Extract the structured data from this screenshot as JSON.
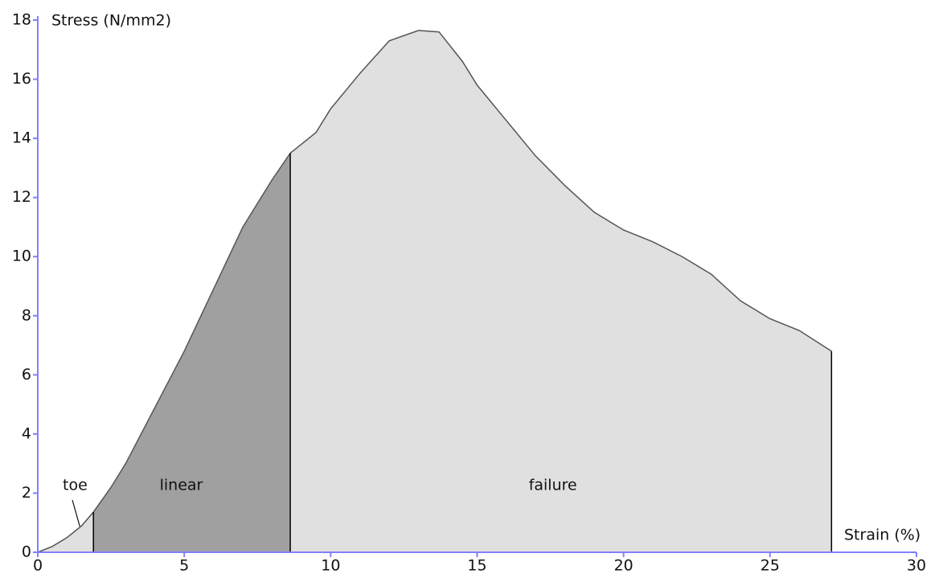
{
  "chart_data": {
    "type": "area",
    "y_label": "Stress (N/mm2)",
    "x_label": "Strain (%)",
    "x": [
      0,
      0.5,
      1,
      1.5,
      1.9,
      2.5,
      3,
      4,
      5,
      6,
      7,
      8,
      8.62,
      9,
      9.5,
      10,
      11,
      12,
      13,
      13.7,
      14.5,
      15,
      16,
      17,
      18,
      19,
      20,
      21,
      22,
      23,
      24,
      25,
      26,
      27.1
    ],
    "values": [
      0,
      0.2,
      0.5,
      0.9,
      1.36,
      2.2,
      3,
      4.9,
      6.8,
      8.9,
      11,
      12.6,
      13.5,
      13.8,
      14.2,
      15,
      16.2,
      17.3,
      17.65,
      17.6,
      16.6,
      15.8,
      14.6,
      13.4,
      12.4,
      11.5,
      10.9,
      10.5,
      10.0,
      9.4,
      8.5,
      7.9,
      7.5,
      6.8
    ],
    "regions": [
      {
        "name": "toe",
        "start": 0,
        "end": 1.9,
        "color": "#e0e0e0"
      },
      {
        "name": "linear",
        "start": 1.9,
        "end": 8.62,
        "color": "#a0a0a0"
      },
      {
        "name": "failure",
        "start": 8.62,
        "end": 27.1,
        "color": "#e0e0e0"
      }
    ],
    "xlim": [
      0,
      30
    ],
    "xticks": [
      0,
      5,
      10,
      15,
      20,
      25,
      30
    ],
    "ylim": [
      0,
      18
    ],
    "yticks": [
      0,
      2,
      4,
      6,
      8,
      10,
      12,
      14,
      16,
      18
    ],
    "axis_color": "#8080ff",
    "line_color": "#555555"
  }
}
